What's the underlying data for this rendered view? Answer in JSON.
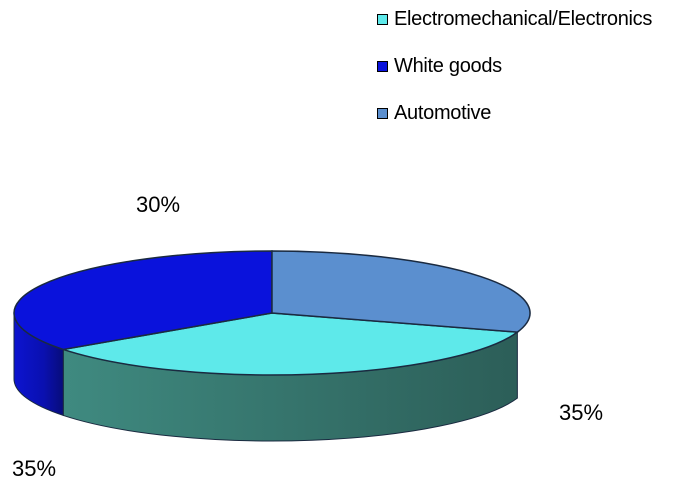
{
  "chart_data": {
    "type": "pie",
    "variant": "3d",
    "title": "",
    "legend_position": "top-right",
    "slices": [
      {
        "label": "Electromechanical/Electronics",
        "value": 35,
        "data_label": "35%",
        "color": "#5ee9ea",
        "side_color": "#3d8079"
      },
      {
        "label": "White goods",
        "value": 35,
        "data_label": "35%",
        "color": "#0a12dc",
        "side_color": "#0a0f90"
      },
      {
        "label": "Automotive",
        "value": 30,
        "data_label": "30%",
        "color": "#5b8fcf",
        "side_color": "#3f6a9c"
      }
    ]
  }
}
